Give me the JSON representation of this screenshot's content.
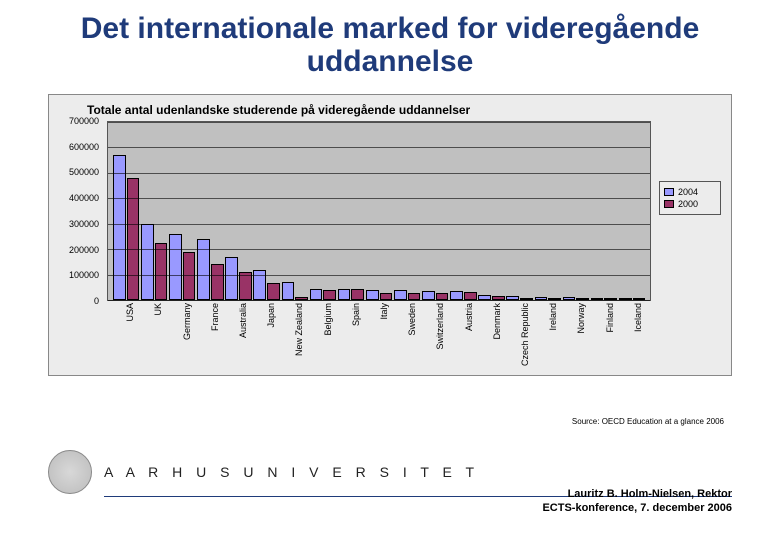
{
  "title": "Det internationale marked for videregående uddannelse",
  "chart": {
    "type": "bar",
    "title": "Totale antal udenlandske studerende på videregående uddannelser",
    "background_color": "#ececec",
    "plot_background": "#c0c0c0",
    "grid_color": "#000000",
    "ylim": [
      0,
      700000
    ],
    "ytick_step": 100000,
    "yticks": [
      0,
      100000,
      200000,
      300000,
      400000,
      500000,
      600000,
      700000
    ],
    "series": [
      {
        "name": "2004",
        "color": "#9999ff"
      },
      {
        "name": "2000",
        "color": "#993366"
      }
    ],
    "categories": [
      "USA",
      "UK",
      "Germany",
      "France",
      "Australia",
      "Japan",
      "New Zealand",
      "Belgium",
      "Spain",
      "Italy",
      "Sweden",
      "Switzerland",
      "Austria",
      "Denmark",
      "Czech Republic",
      "Ireland",
      "Norway",
      "Finland",
      "Iceland"
    ],
    "values_2004": [
      570000,
      300000,
      260000,
      240000,
      170000,
      120000,
      70000,
      45000,
      43000,
      40000,
      38000,
      37000,
      35000,
      18000,
      15000,
      13000,
      12000,
      8000,
      500
    ],
    "values_2000": [
      480000,
      225000,
      190000,
      140000,
      110000,
      65000,
      10000,
      40000,
      42000,
      28000,
      26000,
      28000,
      32000,
      14000,
      7000,
      9000,
      9000,
      6000,
      400
    ],
    "bar_border_color": "#000000",
    "label_fontsize": 9,
    "title_fontsize": 12
  },
  "source": "Source: OECD Education at a glance 2006",
  "footer": {
    "university": "A A R H U S   U N I V E R S I T E T",
    "author_line1": "Lauritz B. Holm-Nielsen, Rektor",
    "author_line2": "ECTS-konference, 7. december 2006",
    "rule_color": "#1f3b7a"
  },
  "colors": {
    "title_color": "#1f3b7a"
  }
}
